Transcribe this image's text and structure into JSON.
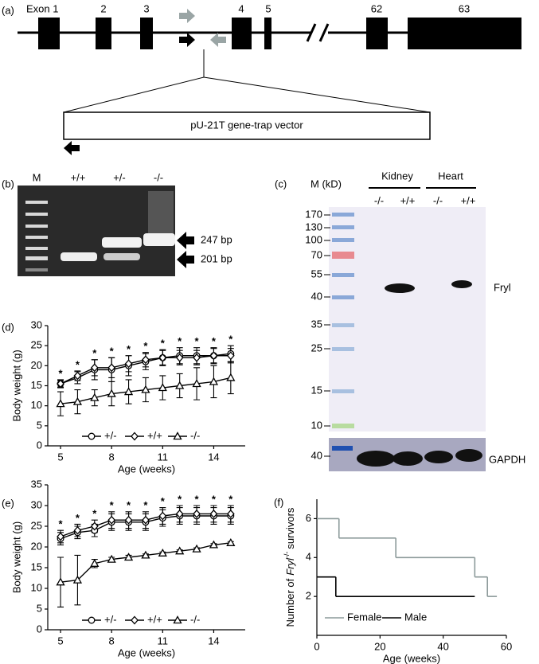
{
  "panel_a": {
    "label": "(a)",
    "exons": [
      "Exon 1",
      "2",
      "3",
      "4",
      "5",
      "62",
      "63"
    ],
    "vector": "pU-21T gene-trap vector"
  },
  "panel_b": {
    "label": "(b)",
    "lanes": [
      "M",
      "+/+",
      "+/-",
      "-/-"
    ],
    "bands": [
      "247 bp",
      "201 bp"
    ]
  },
  "panel_c": {
    "label": "(c)",
    "marker_header": "M (kD)",
    "tissues": [
      "Kidney",
      "Heart"
    ],
    "genotypes": [
      "-/-",
      "+/+",
      "-/-",
      "+/+"
    ],
    "marker_sizes": [
      170,
      130,
      100,
      70,
      55,
      40,
      35,
      25,
      15,
      10
    ],
    "protein": "Fryl",
    "control_size": 40,
    "control": "GAPDH"
  },
  "chart_data": [
    {
      "panel_label": "(d)",
      "type": "line",
      "x_label": "Age (weeks)",
      "y_label": "Body weight (g)",
      "x": [
        5,
        6,
        7,
        8,
        9,
        10,
        11,
        12,
        13,
        14,
        15
      ],
      "xlim": [
        4.25,
        15.85
      ],
      "xticks": [
        5,
        8,
        11,
        14
      ],
      "ylim": [
        0,
        30
      ],
      "yticks": [
        0,
        5,
        10,
        15,
        20,
        25,
        30
      ],
      "legend": "lower center",
      "series": [
        {
          "name": "+/-",
          "color": "#000000",
          "marker": "o",
          "values": [
            15.5,
            17,
            19,
            19,
            20,
            21,
            22,
            22.5,
            22.5,
            22.5,
            23
          ],
          "errors": [
            1,
            1.5,
            2.5,
            3,
            2.5,
            2,
            2,
            2,
            2,
            2,
            2
          ]
        },
        {
          "name": "+/+",
          "color": "#000000",
          "marker": "D",
          "values": [
            15.5,
            17.5,
            19.5,
            19.5,
            20.5,
            21.5,
            22,
            22,
            22,
            22.5,
            22.5
          ],
          "errors": [
            0.8,
            1.2,
            2,
            2.5,
            2,
            1.8,
            1.8,
            1.8,
            1.8,
            1.8,
            1.8
          ]
        },
        {
          "name": "-/-",
          "color": "#000000",
          "marker": "^",
          "values": [
            10.5,
            11,
            12,
            13,
            13.5,
            14,
            14.5,
            15,
            15.5,
            16,
            17
          ],
          "errors": [
            3,
            3,
            2,
            3,
            3,
            3,
            3,
            3,
            4,
            4,
            4
          ]
        }
      ],
      "significance": [
        "*",
        "*",
        "*",
        "*",
        "*",
        "*",
        "*",
        "*",
        "*",
        "*",
        "*"
      ]
    },
    {
      "panel_label": "(e)",
      "type": "line",
      "x_label": "Age (weeks)",
      "y_label": "Body weight (g)",
      "x": [
        5,
        6,
        7,
        8,
        9,
        10,
        11,
        12,
        13,
        14,
        15
      ],
      "xlim": [
        4.25,
        15.85
      ],
      "xticks": [
        5,
        8,
        11,
        14
      ],
      "ylim": [
        0,
        35
      ],
      "yticks": [
        0,
        5,
        10,
        15,
        20,
        25,
        30,
        35
      ],
      "legend": "lower center",
      "series": [
        {
          "name": "+/-",
          "color": "#000000",
          "marker": "o",
          "values": [
            22,
            23.5,
            24,
            26,
            26,
            26,
            27,
            27.5,
            27.5,
            27.5,
            27.5
          ],
          "errors": [
            1.5,
            1.5,
            1.5,
            2,
            2,
            2,
            2,
            2,
            2,
            2,
            2
          ]
        },
        {
          "name": "+/+",
          "color": "#000000",
          "marker": "D",
          "values": [
            22.5,
            24,
            25,
            26.5,
            26.5,
            26.5,
            27.5,
            28,
            28,
            28,
            28
          ],
          "errors": [
            1.5,
            1.5,
            1.5,
            2,
            2,
            2,
            2,
            2,
            2,
            2,
            2
          ]
        },
        {
          "name": "-/-",
          "color": "#000000",
          "marker": "^",
          "values": [
            11.5,
            12,
            16,
            17,
            17.5,
            18,
            18.5,
            19,
            19.5,
            20.5,
            21
          ],
          "errors": [
            6,
            6,
            1,
            0.5,
            0.5,
            0.3,
            0.3,
            0.3,
            0.3,
            0.3,
            0.3
          ]
        }
      ],
      "significance": [
        "*",
        "*",
        "*",
        "*",
        "*",
        "*",
        "*",
        "*",
        "*",
        "*",
        "*"
      ]
    },
    {
      "panel_label": "(f)",
      "type": "line",
      "drawstyle": "steps-post",
      "x_label": "Age (weeks)",
      "y_label": {
        "prefix": "Number of",
        "gene": "Fryl",
        "genotype": "-/-",
        "suffix": "survivors"
      },
      "xlim": [
        0,
        60
      ],
      "xticks": [
        0,
        20,
        40,
        60
      ],
      "ylim": [
        0,
        7
      ],
      "yticks": [
        2,
        4,
        6
      ],
      "legend": "lower left",
      "series": [
        {
          "name": "Female",
          "color": "#8c9a9a",
          "x": [
            0,
            7,
            25,
            50,
            54,
            57
          ],
          "values": [
            6,
            5,
            4,
            3,
            2,
            2
          ]
        },
        {
          "name": "Male",
          "color": "#000000",
          "x": [
            0,
            6,
            50
          ],
          "values": [
            3,
            2,
            2
          ]
        }
      ]
    }
  ]
}
